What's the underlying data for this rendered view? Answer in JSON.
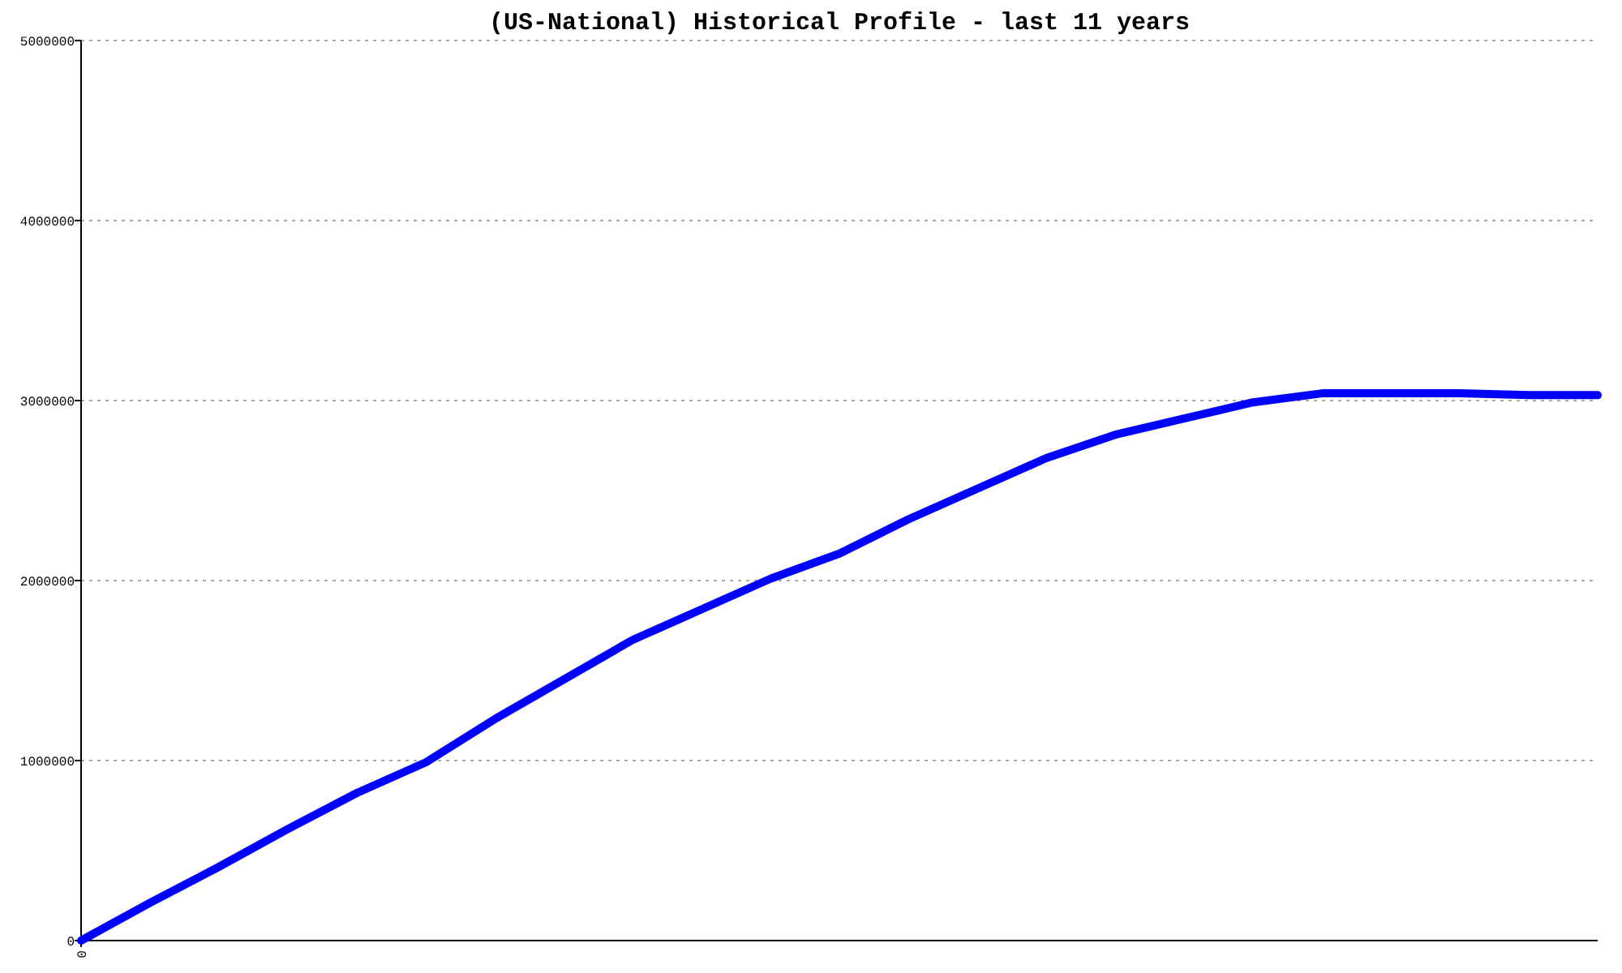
{
  "chart_data": {
    "type": "line",
    "title": "(US-National) Historical Profile - last 11 years",
    "categories": [
      "0",
      null,
      null,
      null,
      null,
      null,
      null,
      null,
      null,
      null,
      null,
      null,
      null,
      null,
      null,
      null,
      null,
      null,
      null,
      null,
      null,
      null,
      null
    ],
    "series": [
      {
        "color": "#0000ff",
        "values": [
          0,
          210000,
          410000,
          620000,
          820000,
          990000,
          1230000,
          1450000,
          1670000,
          1840000,
          2010000,
          2150000,
          2340000,
          2510000,
          2680000,
          2810000,
          2900000,
          2990000,
          3040000,
          3040000,
          3040000,
          3030000,
          3030000
        ]
      }
    ],
    "ylim": [
      0,
      5000000
    ],
    "yticks": [
      0,
      1000000,
      2000000,
      3000000,
      4000000,
      5000000
    ],
    "grid": "y",
    "marker": "none",
    "line_style": "solid"
  }
}
